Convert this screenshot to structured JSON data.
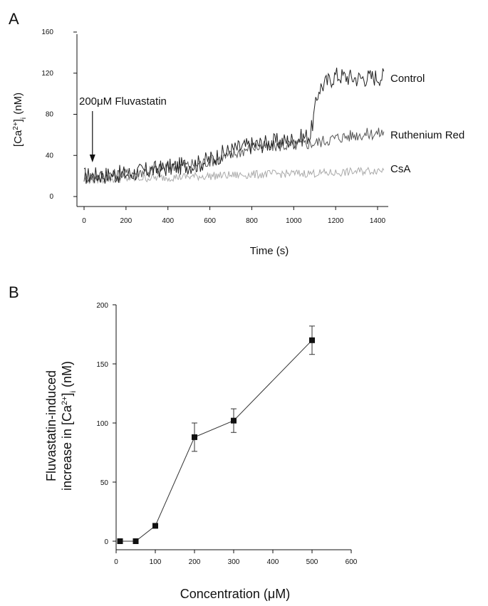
{
  "panels": {
    "a": {
      "letter": "A"
    },
    "b": {
      "letter": "B"
    }
  },
  "colors": {
    "control": "#222222",
    "ruthenium_red": "#555555",
    "csa": "#aaaaaa",
    "axis": "#111111",
    "marker": "#111111"
  },
  "chart_data": [
    {
      "type": "line",
      "panel": "A",
      "xlabel": "Time (s)",
      "ylabel_base": "[Ca",
      "ylabel_sup": "2+",
      "ylabel_mid": "]",
      "ylabel_sub": "i",
      "ylabel_end": " (nM)",
      "xlim": [
        0,
        1450
      ],
      "ylim": [
        0,
        160
      ],
      "x_ticks": [
        0,
        200,
        400,
        600,
        800,
        1000,
        1200,
        1400
      ],
      "y_ticks": [
        0,
        40,
        80,
        120,
        160
      ],
      "annotation": {
        "text": "200μM Fluvastatin",
        "x": 40
      },
      "series": [
        {
          "name": "Control",
          "color_key": "control",
          "keypoints": [
            [
              0,
              20
            ],
            [
              200,
              22
            ],
            [
              400,
              28
            ],
            [
              550,
              32
            ],
            [
              700,
              45
            ],
            [
              800,
              50
            ],
            [
              1000,
              55
            ],
            [
              1080,
              60
            ],
            [
              1120,
              105
            ],
            [
              1200,
              118
            ],
            [
              1300,
              115
            ],
            [
              1430,
              117
            ]
          ],
          "noise": 9
        },
        {
          "name": "Ruthenium Red",
          "color_key": "ruthenium_red",
          "keypoints": [
            [
              0,
              19
            ],
            [
              200,
              22
            ],
            [
              400,
              28
            ],
            [
              550,
              32
            ],
            [
              700,
              40
            ],
            [
              800,
              48
            ],
            [
              1000,
              50
            ],
            [
              1100,
              52
            ],
            [
              1200,
              57
            ],
            [
              1300,
              60
            ],
            [
              1430,
              62
            ]
          ],
          "noise": 6
        },
        {
          "name": "CsA",
          "color_key": "csa",
          "keypoints": [
            [
              0,
              16
            ],
            [
              300,
              18
            ],
            [
              600,
              20
            ],
            [
              900,
              22
            ],
            [
              1200,
              23
            ],
            [
              1430,
              26
            ]
          ],
          "noise": 4
        }
      ]
    },
    {
      "type": "scatter",
      "panel": "B",
      "xlabel_base": "Concentration (",
      "xlabel_unit": "μM",
      "xlabel_end": ")",
      "ylabel_line1": "Fluvastatin-induced",
      "ylabel_line2_base": "increase in [Ca",
      "ylabel_line2_sup": "2+",
      "ylabel_line2_mid": "]",
      "ylabel_line2_sub": "i",
      "ylabel_line2_end": " (nM)",
      "xlim": [
        0,
        600
      ],
      "ylim": [
        0,
        200
      ],
      "x_ticks": [
        0,
        100,
        200,
        300,
        400,
        500,
        600
      ],
      "y_ticks": [
        0,
        50,
        100,
        150,
        200
      ],
      "x": [
        10,
        50,
        100,
        200,
        300,
        500
      ],
      "y": [
        0,
        0,
        13,
        88,
        102,
        170
      ],
      "error": [
        0,
        0,
        0,
        12,
        10,
        12
      ]
    }
  ]
}
